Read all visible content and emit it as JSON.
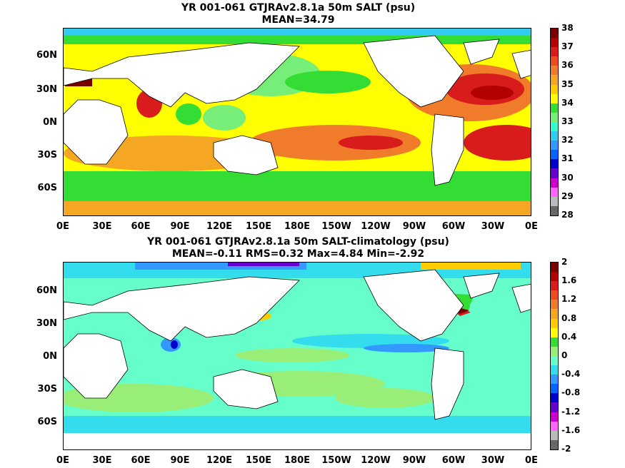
{
  "panel1": {
    "title": "YR 001-061 GTJRAv2.8.1a 50m SALT (psu)",
    "subtitle": "MEAN=34.79",
    "colorbar": {
      "labels": [
        "38",
        "37",
        "36",
        "35",
        "34",
        "33",
        "32",
        "31",
        "30",
        "29",
        "28"
      ],
      "colors": [
        "#7a0000",
        "#b30000",
        "#d81b1b",
        "#ee4b1d",
        "#f07b2a",
        "#f5a623",
        "#ffcc00",
        "#ffff00",
        "#33dd33",
        "#77ee77",
        "#33ffcc",
        "#33ccee",
        "#3399ff",
        "#0066ff",
        "#0000cc",
        "#6600cc",
        "#cc00cc",
        "#ff66ff",
        "#bbbbbb",
        "#666666"
      ]
    }
  },
  "panel2": {
    "title": "YR 001-061 GTJRAv2.8.1a 50m SALT-climatology (psu)",
    "subtitle": "MEAN=-0.11   RMS=0.32   Max=4.84   Min=-2.92",
    "colorbar": {
      "labels": [
        "2",
        "1.6",
        "1.2",
        "0.8",
        "0.4",
        "0",
        "-0.4",
        "-0.8",
        "-1.2",
        "-1.6",
        "-2"
      ],
      "colors": [
        "#7a0000",
        "#b30000",
        "#d81b1b",
        "#ee4b1d",
        "#f07b2a",
        "#f5a623",
        "#ffcc00",
        "#ffff00",
        "#33dd33",
        "#99ee77",
        "#66ffcc",
        "#33ddee",
        "#3399ff",
        "#0066ff",
        "#0000cc",
        "#6600cc",
        "#cc00cc",
        "#ff66ff",
        "#bbbbbb",
        "#666666"
      ]
    }
  },
  "axes": {
    "lat_labels": [
      "60N",
      "30N",
      "0N",
      "30S",
      "60S"
    ],
    "lon_labels": [
      "0E",
      "30E",
      "60E",
      "90E",
      "120E",
      "150E",
      "180E",
      "150W",
      "120W",
      "90W",
      "60W",
      "30W",
      "0E"
    ]
  }
}
